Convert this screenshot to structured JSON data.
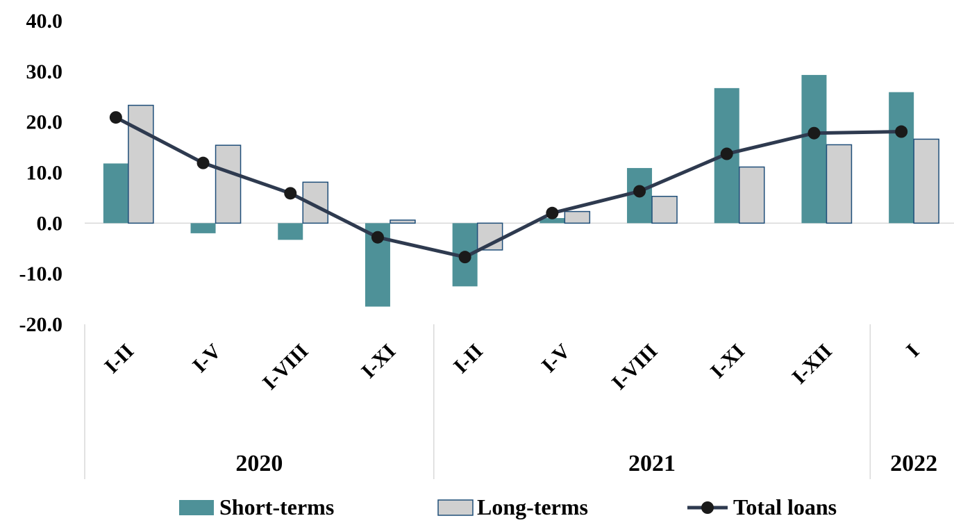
{
  "chart_data": {
    "type": "bar",
    "categories": [
      "I-II",
      "I-V",
      "I-VIII",
      "I-XI",
      "I-II",
      "I-V",
      "I-VIII",
      "I-XI",
      "I-XII",
      "I"
    ],
    "groups": [
      {
        "label": "2020",
        "count": 4
      },
      {
        "label": "2021",
        "count": 5
      },
      {
        "label": "2022",
        "count": 1
      }
    ],
    "series": [
      {
        "name": "Short-terms",
        "type": "bar",
        "color": "#4E9198",
        "values": [
          11.8,
          -2.0,
          -3.3,
          -16.5,
          -12.5,
          1.0,
          10.9,
          26.7,
          29.3,
          25.9
        ]
      },
      {
        "name": "Long-terms",
        "type": "bar",
        "color": "#D0D0D0",
        "stroke": "#1F4E79",
        "values": [
          23.3,
          15.4,
          8.1,
          0.6,
          -5.3,
          2.3,
          5.3,
          11.1,
          15.5,
          16.6
        ]
      },
      {
        "name": "Total loans",
        "type": "line",
        "color": "#2E3A4F",
        "values": [
          20.9,
          11.9,
          5.9,
          -2.8,
          -6.7,
          2.0,
          6.3,
          13.7,
          17.8,
          18.1
        ]
      }
    ],
    "yticks": [
      "40.0",
      "30.0",
      "20.0",
      "10.0",
      "0.0",
      "-10.0",
      "-20.0"
    ],
    "ylim": [
      -20,
      40
    ],
    "xlabel": "",
    "ylabel": "",
    "legend_position": "bottom",
    "grid": false
  }
}
